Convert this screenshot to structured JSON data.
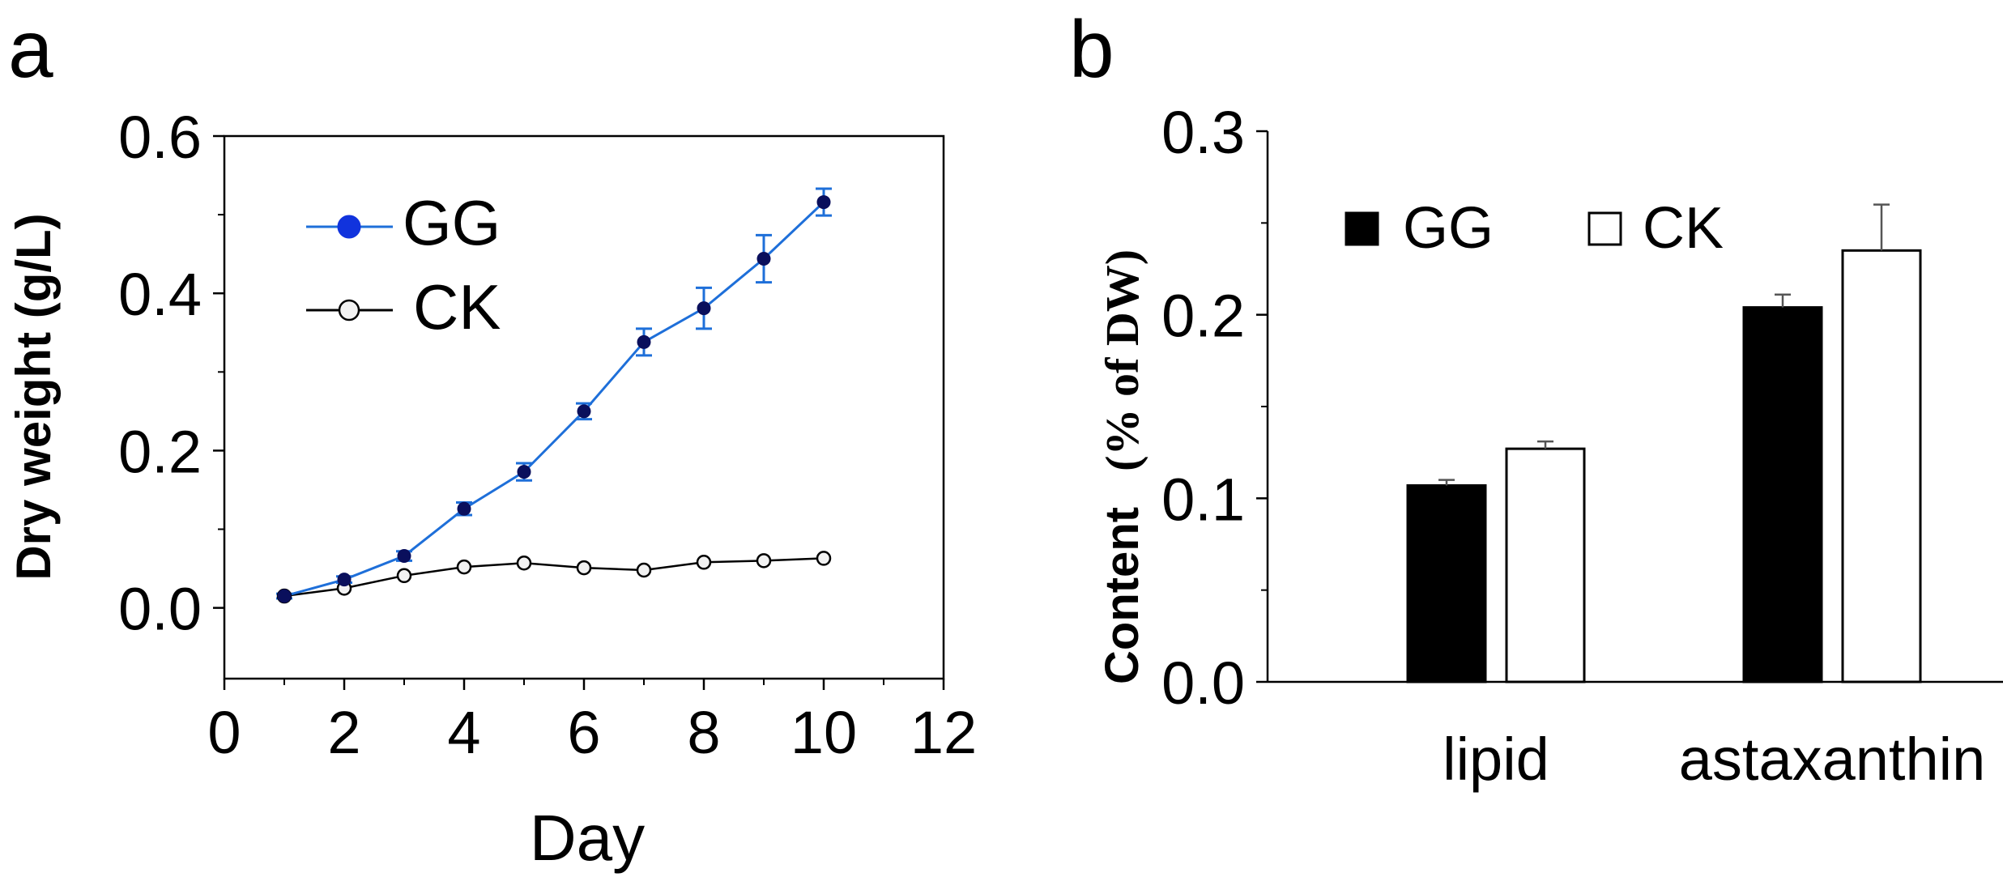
{
  "colors": {
    "axis": "#000000",
    "gg_line": "#1e6fd9",
    "gg_marker": "#0a0f5c",
    "ck_marker_fill": "#f2f2f2",
    "bar_gg": "#000000",
    "bar_ck": "#ffffff",
    "errorbar_b": "#555555"
  },
  "chart_data": [
    {
      "panel_label": "a",
      "type": "line",
      "xlabel": "Day",
      "ylabel": "Dry weight (g/L)",
      "xlim": [
        0,
        12
      ],
      "ylim": [
        -0.09,
        0.6
      ],
      "xticks": [
        0,
        2,
        4,
        6,
        8,
        10,
        12
      ],
      "xtick_labels": [
        "0",
        "2",
        "4",
        "6",
        "8",
        "10",
        "12"
      ],
      "yticks": [
        0.0,
        0.2,
        0.4,
        0.6
      ],
      "ytick_labels": [
        "0.0",
        "0.2",
        "0.4",
        "0.6"
      ],
      "x": [
        1,
        2,
        3,
        4,
        5,
        6,
        7,
        8,
        9,
        10
      ],
      "series": [
        {
          "name": "GG",
          "values": [
            0.015,
            0.036,
            0.066,
            0.126,
            0.173,
            0.25,
            0.338,
            0.381,
            0.444,
            0.516
          ],
          "errors": [
            0.003,
            0.004,
            0.006,
            0.008,
            0.011,
            0.01,
            0.017,
            0.026,
            0.03,
            0.017
          ],
          "marker": "filled-circle"
        },
        {
          "name": "CK",
          "values": [
            0.015,
            0.025,
            0.041,
            0.052,
            0.057,
            0.051,
            0.048,
            0.058,
            0.06,
            0.063
          ],
          "errors": [
            0,
            0,
            0,
            0,
            0,
            0,
            0,
            0,
            0,
            0
          ],
          "marker": "open-circle"
        }
      ],
      "legend": [
        "GG",
        "CK"
      ],
      "legend_position": "top-left"
    },
    {
      "panel_label": "b",
      "type": "bar",
      "ylabel_main": "Content",
      "ylabel_unit": "(% of DW)",
      "ylim": [
        0,
        0.3
      ],
      "yticks": [
        0.0,
        0.1,
        0.2,
        0.3
      ],
      "ytick_labels": [
        "0.0",
        "0.1",
        "0.2",
        "0.3"
      ],
      "categories": [
        "lipid",
        "astaxanthin"
      ],
      "series": [
        {
          "name": "GG",
          "values": [
            0.107,
            0.204
          ],
          "errors": [
            0.003,
            0.007
          ]
        },
        {
          "name": "CK",
          "values": [
            0.127,
            0.235
          ],
          "errors": [
            0.004,
            0.025
          ]
        }
      ],
      "legend": [
        "GG",
        "CK"
      ],
      "legend_position": "top-center"
    }
  ]
}
